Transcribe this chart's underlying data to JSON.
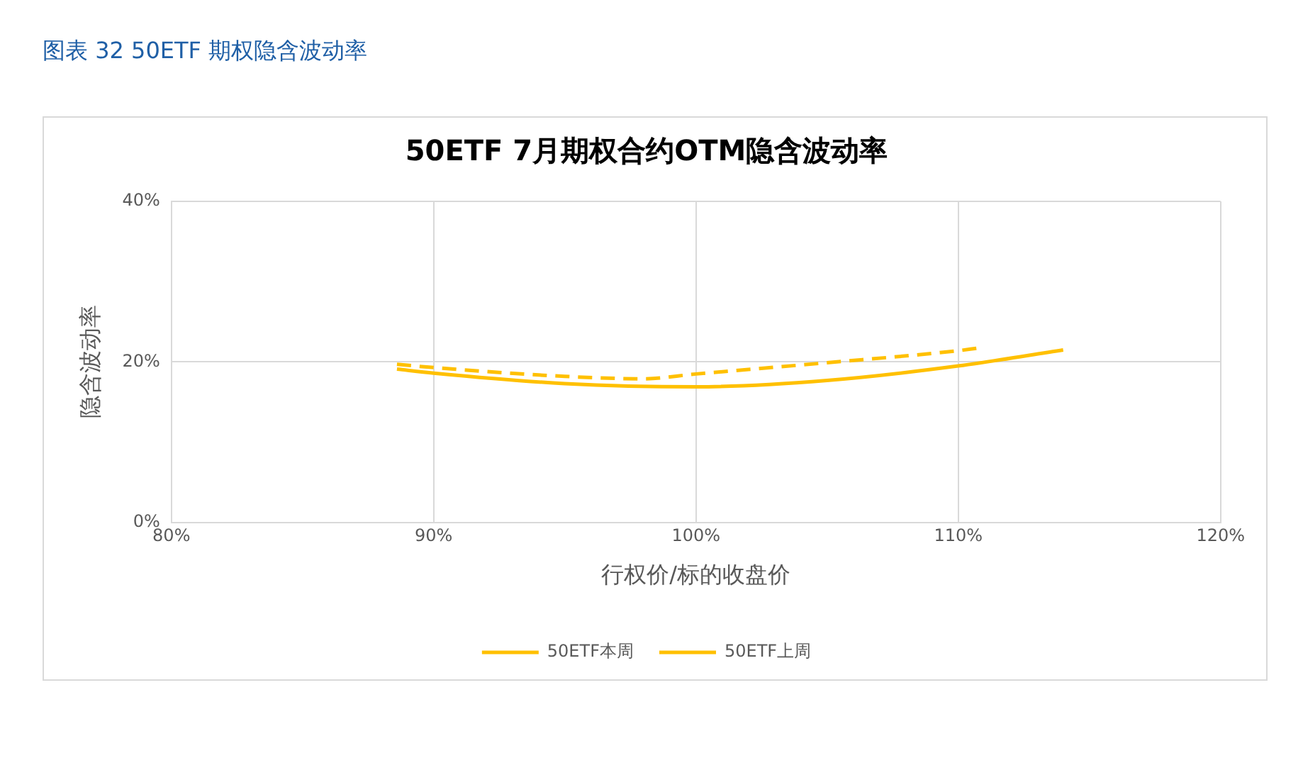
{
  "chart_data": {
    "type": "line",
    "title": "50ETF 7月期权合约OTM隐含波动率",
    "xlabel": "行权价/标的收盘价",
    "ylabel": "隐含波动率",
    "annotations": [
      "图表 32 50ETF 期权隐含波动率"
    ],
    "xlim": [
      80,
      120
    ],
    "xticks": [
      {
        "value": 80,
        "label": "80%"
      },
      {
        "value": 90,
        "label": "90%"
      },
      {
        "value": 100,
        "label": "100%"
      },
      {
        "value": 110,
        "label": "110%"
      },
      {
        "value": 120,
        "label": "120%"
      }
    ],
    "ylim": [
      0,
      40
    ],
    "yticks": [
      {
        "value": 0,
        "label": "0%"
      },
      {
        "value": 20,
        "label": "20%"
      },
      {
        "value": 40,
        "label": "40%"
      }
    ],
    "grid": true,
    "legend": "bottom",
    "marker": "none",
    "series": [
      {
        "name": "50ETF本周",
        "color": "#ffc000",
        "line_style": "solid",
        "x": [
          88.6,
          90,
          95,
          100,
          105,
          110,
          114
        ],
        "values": [
          19.1,
          18.6,
          17.3,
          16.9,
          17.7,
          19.5,
          21.5
        ]
      },
      {
        "name": "50ETF上周",
        "color": "#ffc000",
        "line_style": "dashed",
        "x": [
          88.6,
          90,
          95,
          98,
          100,
          105,
          110,
          110.7
        ],
        "values": [
          19.7,
          19.3,
          18.2,
          17.9,
          18.5,
          19.9,
          21.4,
          21.7
        ]
      }
    ]
  }
}
